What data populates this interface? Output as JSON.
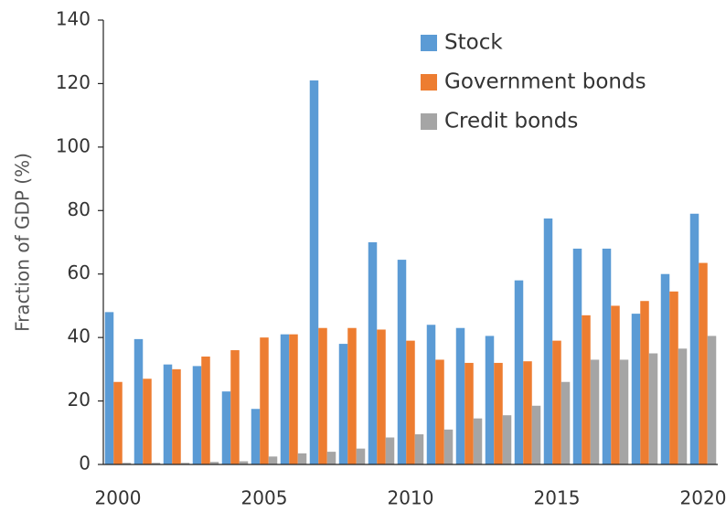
{
  "chart_data": {
    "type": "bar",
    "categories": [
      "2000",
      null,
      null,
      null,
      null,
      "2005",
      null,
      null,
      null,
      null,
      "2010",
      null,
      null,
      null,
      null,
      "2015",
      null,
      null,
      null,
      null,
      "2020"
    ],
    "ylabel": "Fraction of GDP (%)",
    "series": [
      {
        "name": "Stock",
        "color": "#5b9bd5",
        "values": [
          48,
          39.5,
          31.5,
          31,
          23,
          17.5,
          41,
          121,
          38,
          70,
          64.5,
          44,
          43,
          40.5,
          58,
          77.5,
          68,
          68,
          47.5,
          60,
          79
        ]
      },
      {
        "name": "Government bonds",
        "color": "#ed7d31",
        "values": [
          26,
          27,
          30,
          34,
          36,
          40,
          41,
          43,
          43,
          42.5,
          39,
          33,
          32,
          32,
          32.5,
          39,
          47,
          50,
          51.5,
          54.5,
          63.5
        ]
      },
      {
        "name": "Credit bonds",
        "color": "#a5a5a5",
        "values": [
          0.5,
          0.5,
          0.5,
          0.8,
          1,
          2.5,
          3.5,
          4,
          5,
          8.5,
          9.5,
          11,
          14.5,
          15.5,
          18.5,
          26,
          33,
          33,
          35,
          36.5,
          40.5
        ]
      }
    ],
    "ylim": [
      0,
      140
    ],
    "yticks": [
      0,
      20,
      40,
      60,
      80,
      100,
      120,
      140
    ],
    "legend": "upper right",
    "grid": false
  }
}
